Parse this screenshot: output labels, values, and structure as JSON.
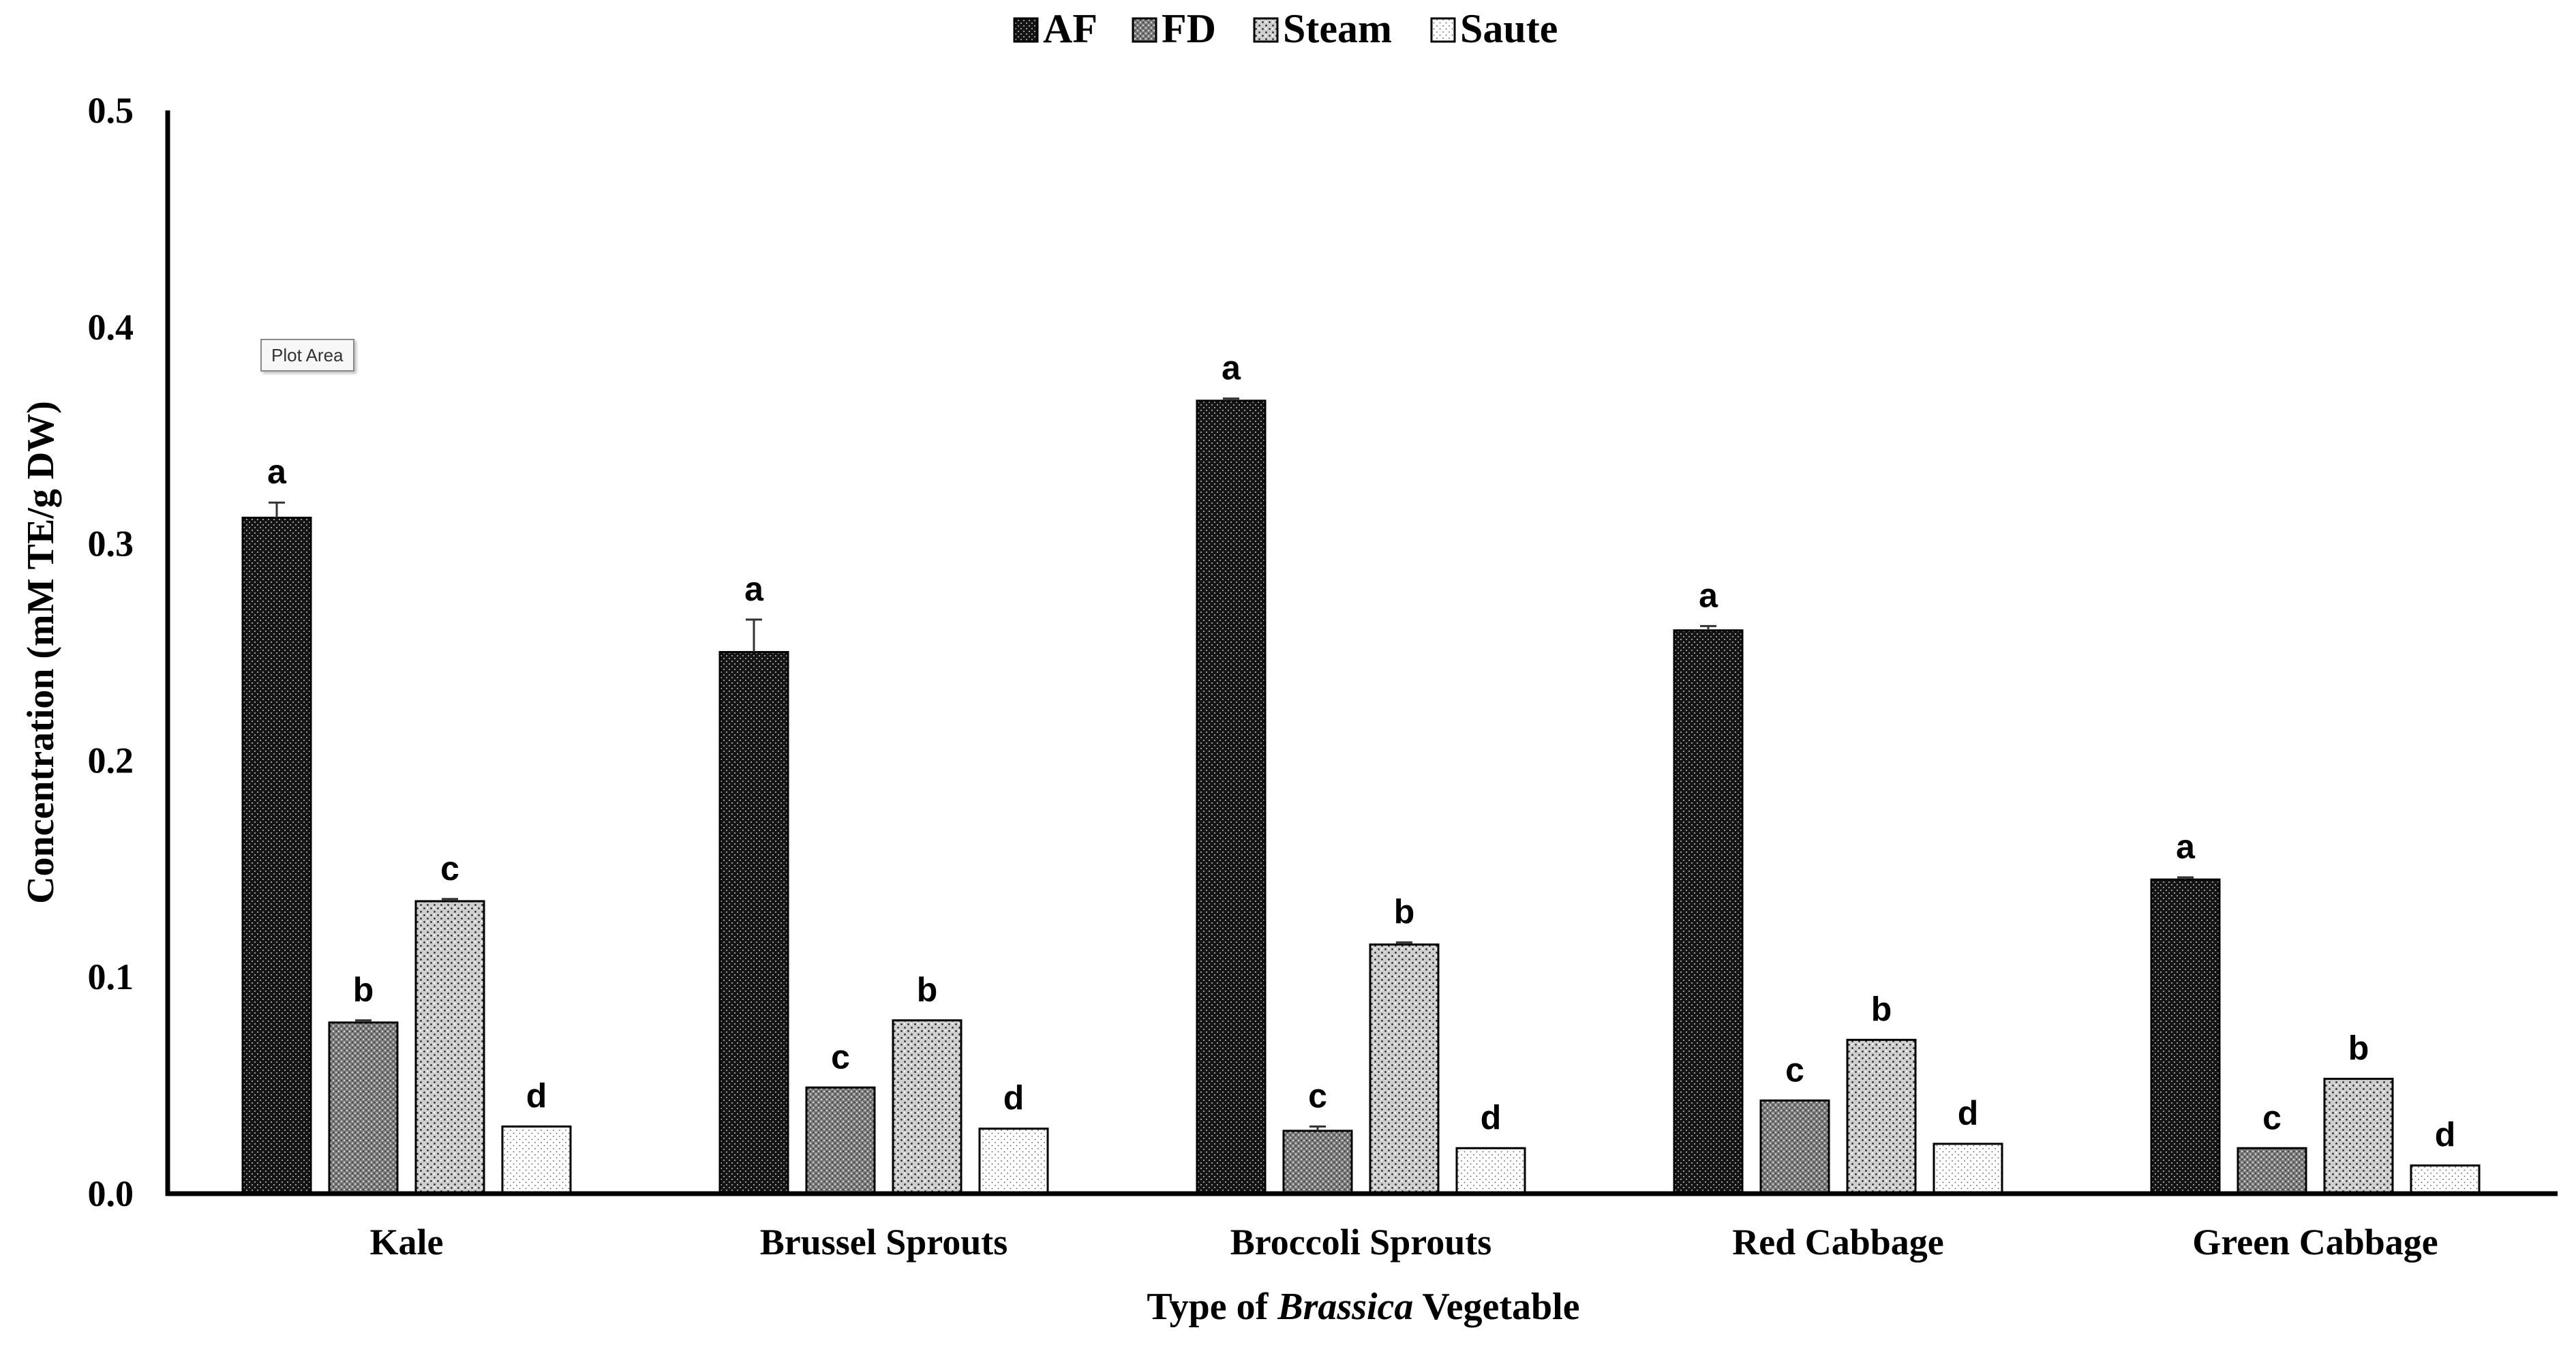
{
  "chart_data": {
    "type": "bar",
    "title": "",
    "xlabel_prefix": "Type of ",
    "xlabel_italic": "Brassica",
    "xlabel_suffix": " Vegetable",
    "ylabel": "Concentration (mM TE/g DW)",
    "ylim": [
      0,
      0.5
    ],
    "yticks": [
      "0.0",
      "0.1",
      "0.2",
      "0.3",
      "0.4",
      "0.5"
    ],
    "grid": false,
    "legend_position": "top-center",
    "categories": [
      "Kale",
      "Brussel Sprouts",
      "Broccoli Sprouts",
      "Red Cabbage",
      "Green Cabbage"
    ],
    "series": [
      {
        "name": "AF",
        "pattern": "af",
        "values": [
          0.312,
          0.25,
          0.366,
          0.26,
          0.145
        ],
        "errors": [
          0.007,
          0.015,
          0.001,
          0.002,
          0.001
        ],
        "letters": [
          "a",
          "a",
          "a",
          "a",
          "a"
        ]
      },
      {
        "name": "FD",
        "pattern": "fd",
        "values": [
          0.079,
          0.049,
          0.029,
          0.043,
          0.021
        ],
        "errors": [
          0.001,
          0.0,
          0.002,
          0.0,
          0.0
        ],
        "letters": [
          "b",
          "c",
          "c",
          "c",
          "c"
        ]
      },
      {
        "name": "Steam",
        "pattern": "steam",
        "values": [
          0.135,
          0.08,
          0.115,
          0.071,
          0.053
        ],
        "errors": [
          0.001,
          0.0,
          0.001,
          0.0,
          0.0
        ],
        "letters": [
          "c",
          "b",
          "b",
          "b",
          "b"
        ]
      },
      {
        "name": "Saute",
        "pattern": "saute",
        "values": [
          0.031,
          0.03,
          0.021,
          0.023,
          0.013
        ],
        "errors": [
          0.0,
          0.0,
          0.0,
          0.0,
          0.0
        ],
        "letters": [
          "d",
          "d",
          "d",
          "d",
          "d"
        ]
      }
    ],
    "annotation": "Plot Area"
  }
}
